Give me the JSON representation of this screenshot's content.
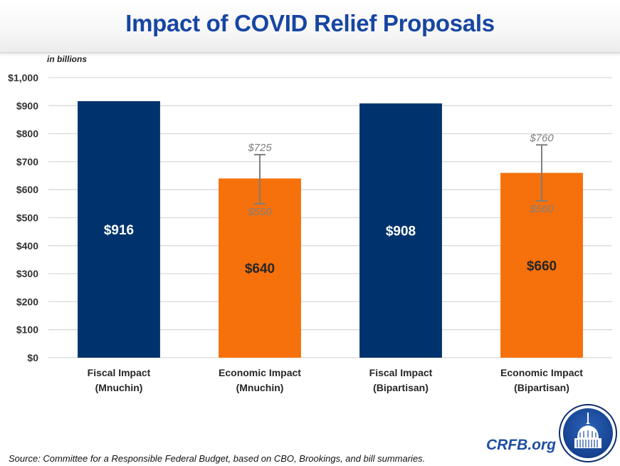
{
  "header": {
    "title": "Impact of COVID Relief Proposals",
    "units_note": "in billions"
  },
  "colors": {
    "fiscal": "#00336d",
    "economic": "#f6700b",
    "title": "#1746a2",
    "gridline": "#d9d9d9",
    "error_bar": "#7f7f7f"
  },
  "chart_data": {
    "type": "bar",
    "title": "Impact of COVID Relief Proposals",
    "subtitle": "in billions",
    "xlabel": "",
    "ylabel": "",
    "ylim": [
      0,
      1000
    ],
    "grid": true,
    "legend": "none",
    "yticks": [
      0,
      100,
      200,
      300,
      400,
      500,
      600,
      700,
      800,
      900,
      1000
    ],
    "ytick_labels": [
      "$0",
      "$100",
      "$200",
      "$300",
      "$400",
      "$500",
      "$600",
      "$700",
      "$800",
      "$900",
      "$1,000"
    ],
    "categories": [
      [
        "Fiscal Impact",
        "(Mnuchin)"
      ],
      [
        "Economic Impact",
        "(Mnuchin)"
      ],
      [
        "Fiscal Impact",
        "(Bipartisan)"
      ],
      [
        "Economic Impact",
        "(Bipartisan)"
      ]
    ],
    "values": [
      916,
      640,
      908,
      660
    ],
    "value_labels": [
      "$916",
      "$640",
      "$908",
      "$660"
    ],
    "bar_types": [
      "fiscal",
      "economic",
      "fiscal",
      "economic"
    ],
    "error_ranges": [
      null,
      {
        "low": 550,
        "high": 725,
        "low_label": "$550",
        "high_label": "$725"
      },
      null,
      {
        "low": 560,
        "high": 760,
        "low_label": "$560",
        "high_label": "$760"
      }
    ]
  },
  "footer": {
    "source": "Source: Committee for a Responsible Federal Budget, based on CBO, Brookings, and bill summaries.",
    "brand": "CRFB.org",
    "logo_icon": "capitol-dome-icon"
  }
}
